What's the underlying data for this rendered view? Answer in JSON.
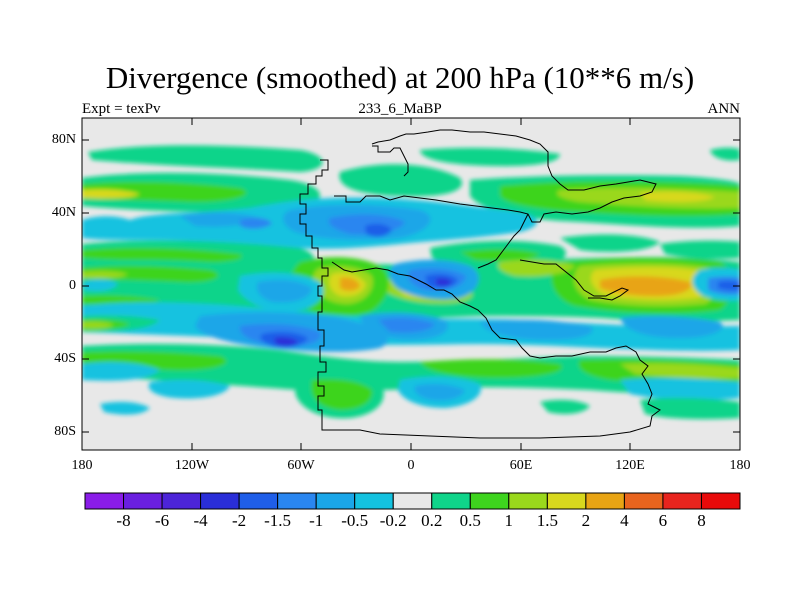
{
  "title": "Divergence (smoothed) at 200 hPa (10**6 m/s)",
  "experiment": "Expt = texPv",
  "case_name": "233_6_MaBP",
  "season": "ANN",
  "map": {
    "projection": "cylindrical equidistant",
    "lat_labels": [
      "80N",
      "40N",
      "0",
      "40S",
      "80S"
    ],
    "lon_labels": [
      "180",
      "120W",
      "60W",
      "0",
      "60E",
      "120E",
      "180"
    ],
    "lat_ticks": [
      80,
      40,
      0,
      -40,
      -80
    ],
    "lon_ticks": [
      -180,
      -120,
      -60,
      0,
      60,
      120,
      180
    ],
    "lat_range": [
      -90,
      90
    ],
    "lon_range": [
      -180,
      180
    ]
  },
  "colorbar": {
    "labels": [
      "-8",
      "-6",
      "-4",
      "-2",
      "-1.5",
      "-1",
      "-0.5",
      "-0.2",
      "0.2",
      "0.5",
      "1",
      "1.5",
      "2",
      "4",
      "6",
      "8"
    ],
    "colors": [
      "#8a1ce8",
      "#6a1fe0",
      "#4c24d8",
      "#2a2ed8",
      "#1f5ee8",
      "#2a86f0",
      "#1aa6e8",
      "#14c2e0",
      "#e8e8e8",
      "#10d48a",
      "#3ed41e",
      "#9ad81c",
      "#d8d81e",
      "#e8a414",
      "#e8641e",
      "#e8241e",
      "#e80a0a"
    ]
  },
  "chart_data": {
    "type": "heatmap",
    "title": "Divergence (smoothed) at 200 hPa (10**6 m/s)",
    "units": "10**6 m/s",
    "level": "200 hPa",
    "x": "longitude",
    "y": "latitude",
    "xlim": [
      -180,
      180
    ],
    "ylim": [
      -90,
      90
    ],
    "features": [
      {
        "type": "convergence",
        "lon": -12,
        "lat": 28,
        "value": -1.5
      },
      {
        "type": "convergence",
        "lon": -60,
        "lat": -32,
        "value": -2
      },
      {
        "type": "convergence",
        "lon": 20,
        "lat": 2,
        "value": -2
      },
      {
        "type": "convergence",
        "lon": 170,
        "lat": 0,
        "value": -1.5
      },
      {
        "type": "divergence",
        "lon": -30,
        "lat": 2,
        "value": 2
      },
      {
        "type": "divergence",
        "lon": 140,
        "lat": 0,
        "value": 2
      },
      {
        "type": "divergence",
        "lon": 110,
        "lat": 10,
        "value": 1.5
      },
      {
        "type": "divergence",
        "lon": 135,
        "lat": 47,
        "value": 1.5
      }
    ]
  }
}
